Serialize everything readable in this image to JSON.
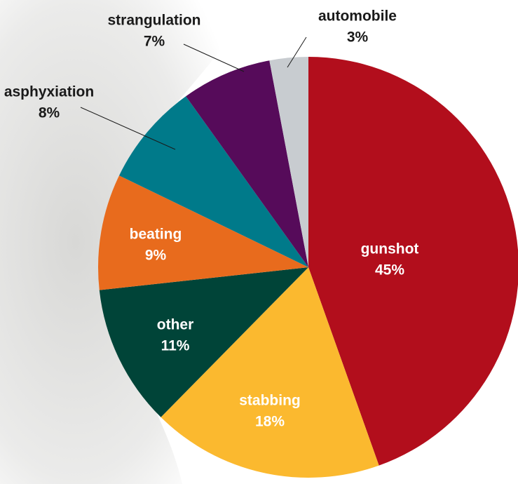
{
  "chart_data": {
    "type": "pie",
    "categories": [
      "gunshot",
      "stabbing",
      "other",
      "beating",
      "asphyxiation",
      "strangulation",
      "automobile"
    ],
    "values": [
      45,
      18,
      11,
      9,
      8,
      7,
      3
    ],
    "value_labels": [
      "45%",
      "18%",
      "11%",
      "9%",
      "8%",
      "7%",
      "3%"
    ],
    "colors": [
      "#b20e1c",
      "#fbb92f",
      "#004438",
      "#e86b1d",
      "#007a8a",
      "#560b5a",
      "#c8ccd0"
    ]
  }
}
